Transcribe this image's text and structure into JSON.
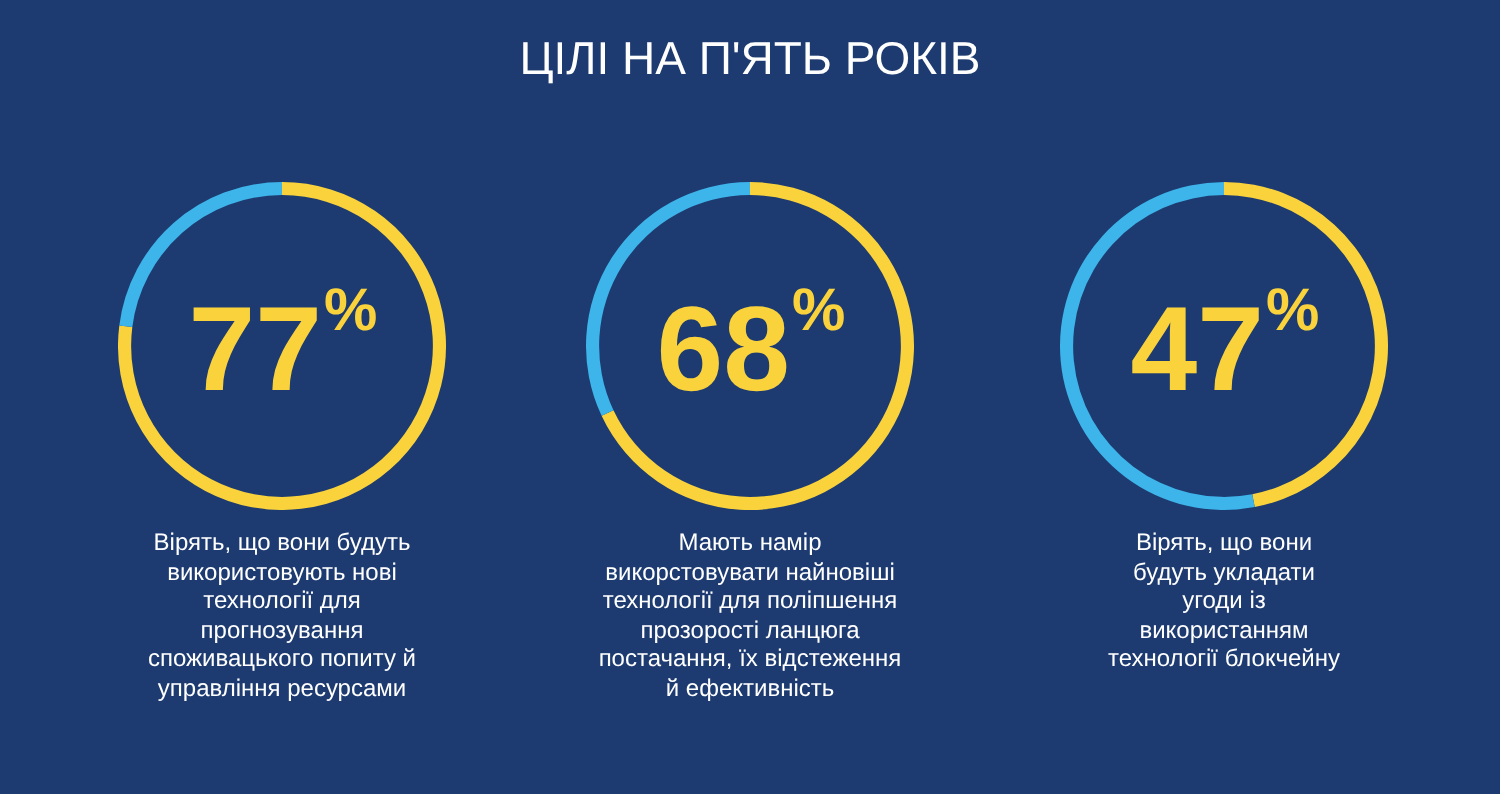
{
  "chart_data": [
    {
      "type": "donut",
      "categories": [
        null,
        null
      ],
      "values": [
        77,
        23
      ],
      "colors": [
        "#f9d23c",
        "#3db4ea"
      ],
      "value_labels": [
        "77%",
        null
      ],
      "annotations": [
        "Вірять, що вони будуть\nвикористовують нові\nтехнології для\nпрогнозування\nспоживацького попиту й\nуправління ресурсами"
      ]
    },
    {
      "type": "donut",
      "title": "ЦІЛІ НА П'ЯТЬ РОКІВ",
      "categories": [
        null,
        null
      ],
      "values": [
        68,
        32
      ],
      "colors": [
        "#f9d23c",
        "#3db4ea"
      ],
      "value_labels": [
        "68%",
        null
      ],
      "annotations": [
        "Мають намір\nвикорстовувати найновіші\nтехнології для поліпшення\nпрозорості ланцюга\nпостачання, їх відстеження\nй ефективність"
      ]
    },
    {
      "type": "donut",
      "categories": [
        null,
        null
      ],
      "values": [
        47,
        53
      ],
      "colors": [
        "#f9d23c",
        "#3db4ea"
      ],
      "value_labels": [
        "47%",
        null
      ],
      "annotations": [
        "Вірять, що вони\nбудуть укладати\nугоди із\nвикористанням\nтехнології блокчейну"
      ]
    }
  ]
}
